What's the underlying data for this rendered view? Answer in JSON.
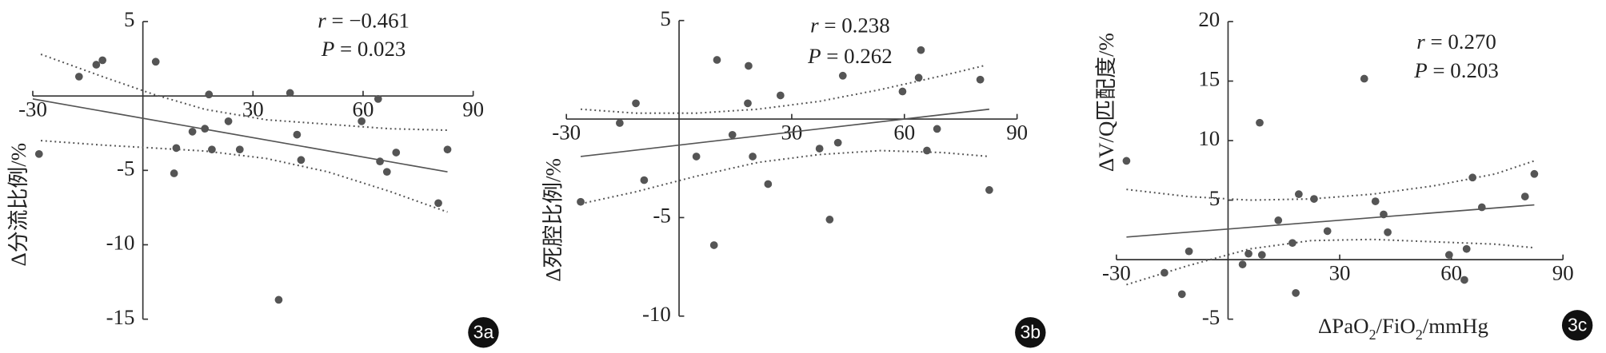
{
  "chart_data": [
    {
      "type": "scatter",
      "badge": "3a",
      "y_label": "Δ分流比例/%",
      "stats": [
        {
          "symbol": "r",
          "text": " = −0.461"
        },
        {
          "symbol": "P",
          "text": " = 0.023"
        }
      ],
      "xlim": [
        -30,
        90
      ],
      "ylim": [
        -15,
        5
      ],
      "xticks": [
        -30,
        30,
        60,
        90
      ],
      "yticks": [
        5,
        -5,
        -10,
        -15
      ],
      "x": [
        -28.3,
        -17.4,
        -12.7,
        -11.0,
        3.5,
        8.5,
        9.1,
        13.5,
        16.9,
        18.0,
        18.8,
        23.3,
        26.4,
        40.1,
        37.0,
        42.0,
        43.1,
        59.6,
        64.1,
        64.6,
        66.5,
        69.0,
        80.5,
        83.0
      ],
      "y": [
        -3.9,
        1.3,
        2.1,
        2.4,
        2.3,
        -5.2,
        -3.5,
        -2.4,
        -2.2,
        0.1,
        -3.6,
        -1.7,
        -3.6,
        0.2,
        -13.7,
        -2.6,
        -4.3,
        -1.7,
        -0.2,
        -4.4,
        -5.1,
        -3.8,
        -7.2,
        -3.6
      ],
      "fit": {
        "x": [
          -30,
          83
        ],
        "y": [
          -0.2,
          -5.1
        ]
      },
      "upper_band": {
        "x": [
          -27.8,
          -11,
          3,
          16.9,
          33.6,
          50.4,
          67.1,
          83
        ],
        "y": [
          2.8,
          1.3,
          0.1,
          -0.9,
          -1.6,
          -1.9,
          -2.2,
          -2.3
        ]
      },
      "lower_band": {
        "x": [
          -27.8,
          -11,
          3,
          16.9,
          33.6,
          50.4,
          67.1,
          83
        ],
        "y": [
          -3.0,
          -3.3,
          -3.5,
          -3.7,
          -4.2,
          -5.1,
          -6.4,
          -7.8
        ]
      }
    },
    {
      "type": "scatter",
      "badge": "3b",
      "y_label": "Δ死腔比例/%",
      "stats": [
        {
          "symbol": "r",
          "text": " = 0.238"
        },
        {
          "symbol": "P",
          "text": " = 0.262"
        }
      ],
      "xlim": [
        -30,
        90
      ],
      "ylim": [
        -10,
        5
      ],
      "xticks": [
        -30,
        30,
        60,
        90
      ],
      "yticks": [
        5,
        -5,
        -10
      ],
      "x": [
        -26.2,
        -15.8,
        -11.5,
        -9.3,
        4.6,
        9.3,
        10.1,
        14.2,
        18.3,
        18.5,
        19.6,
        23.7,
        27.0,
        37.4,
        40.1,
        42.3,
        43.6,
        59.5,
        63.8,
        64.4,
        66.0,
        68.7,
        80.2,
        82.6
      ],
      "y": [
        -4.2,
        -0.2,
        0.8,
        -3.1,
        -1.9,
        -6.4,
        3.0,
        -0.8,
        0.8,
        2.7,
        -1.9,
        -3.3,
        1.2,
        -1.5,
        -5.1,
        -1.2,
        2.2,
        1.4,
        2.1,
        3.5,
        -1.6,
        -0.5,
        2.0,
        -3.6
      ],
      "fit": {
        "x": [
          -26.2,
          82.6
        ],
        "y": [
          -1.9,
          0.5
        ]
      },
      "upper_band": {
        "x": [
          -26.2,
          -11.7,
          4.6,
          21,
          37.4,
          53.7,
          70.1,
          81
        ],
        "y": [
          0.5,
          0.3,
          0.3,
          0.5,
          0.9,
          1.5,
          2.2,
          2.7
        ]
      },
      "lower_band": {
        "x": [
          -26.2,
          -11.7,
          4.6,
          21,
          37.4,
          53.7,
          70.1,
          82.6
        ],
        "y": [
          -4.3,
          -3.7,
          -2.9,
          -2.2,
          -1.8,
          -1.6,
          -1.7,
          -1.9
        ]
      }
    },
    {
      "type": "scatter",
      "badge": "3c",
      "y_label": "ΔV/Q匹配度/%",
      "x_label": [
        {
          "text": "ΔPaO"
        },
        {
          "text": "2",
          "sub": true
        },
        {
          "text": "/FiO"
        },
        {
          "text": "2",
          "sub": true
        },
        {
          "text": "/mmHg"
        }
      ],
      "stats": [
        {
          "symbol": "r",
          "text": " = 0.270"
        },
        {
          "symbol": "P",
          "text": " = 0.203"
        }
      ],
      "xlim": [
        -30,
        90
      ],
      "ylim": [
        -5,
        20
      ],
      "xticks": [
        -30,
        30,
        60,
        90
      ],
      "yticks": [
        20,
        15,
        10,
        5,
        -5
      ],
      "x": [
        -27.3,
        -17.1,
        -12.4,
        -10.5,
        3.9,
        5.5,
        8.5,
        9.1,
        13.5,
        17.3,
        18.2,
        19.0,
        23.1,
        26.7,
        36.6,
        39.6,
        41.8,
        42.9,
        59.4,
        63.5,
        64.1,
        65.7,
        68.2,
        79.8,
        82.3
      ],
      "y": [
        8.3,
        -1.1,
        -2.9,
        0.7,
        -0.4,
        0.5,
        11.5,
        0.4,
        3.3,
        1.4,
        -2.8,
        5.5,
        5.1,
        2.4,
        15.2,
        4.9,
        3.8,
        2.3,
        0.4,
        -1.7,
        0.9,
        6.9,
        4.4,
        5.3,
        7.2
      ],
      "fit": {
        "x": [
          -27.3,
          82.3
        ],
        "y": [
          1.9,
          4.6
        ]
      },
      "upper_band": {
        "x": [
          -27.3,
          -10.7,
          5.8,
          22.3,
          38.8,
          55.3,
          71.8,
          82.3
        ],
        "y": [
          5.9,
          5.3,
          5.0,
          5.1,
          5.5,
          6.2,
          7.2,
          8.3
        ]
      },
      "lower_band": {
        "x": [
          -27.3,
          -10.7,
          5.8,
          22.3,
          38.8,
          55.3,
          71.8,
          82.3
        ],
        "y": [
          -2.1,
          -0.5,
          0.9,
          1.6,
          1.7,
          1.5,
          1.3,
          1.0
        ]
      }
    }
  ]
}
